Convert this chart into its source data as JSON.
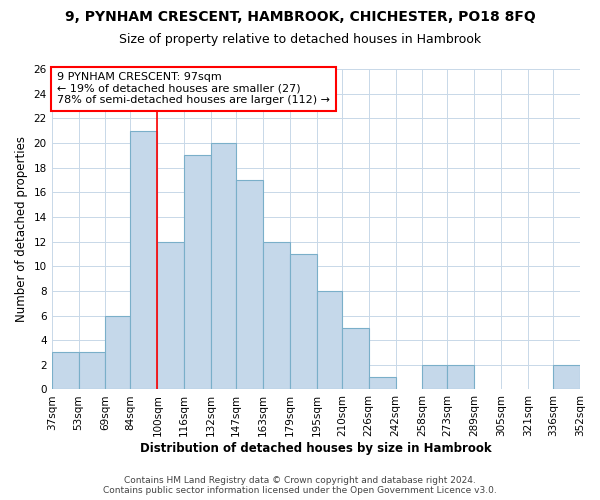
{
  "title": "9, PYNHAM CRESCENT, HAMBROOK, CHICHESTER, PO18 8FQ",
  "subtitle": "Size of property relative to detached houses in Hambrook",
  "xlabel": "Distribution of detached houses by size in Hambrook",
  "ylabel": "Number of detached properties",
  "bin_edges": [
    37,
    53,
    69,
    84,
    100,
    116,
    132,
    147,
    163,
    179,
    195,
    210,
    226,
    242,
    258,
    273,
    289,
    305,
    321,
    336,
    352
  ],
  "bin_labels": [
    "37sqm",
    "53sqm",
    "69sqm",
    "84sqm",
    "100sqm",
    "116sqm",
    "132sqm",
    "147sqm",
    "163sqm",
    "179sqm",
    "195sqm",
    "210sqm",
    "226sqm",
    "242sqm",
    "258sqm",
    "273sqm",
    "289sqm",
    "305sqm",
    "321sqm",
    "336sqm",
    "352sqm"
  ],
  "bar_heights": [
    3,
    3,
    6,
    21,
    12,
    19,
    20,
    17,
    12,
    11,
    8,
    5,
    1,
    0,
    2,
    2,
    0,
    0,
    0,
    2
  ],
  "bar_color": "#c5d8ea",
  "bar_edge_color": "#7aafc9",
  "red_line_x": 100,
  "ylim": [
    0,
    26
  ],
  "yticks": [
    0,
    2,
    4,
    6,
    8,
    10,
    12,
    14,
    16,
    18,
    20,
    22,
    24,
    26
  ],
  "annotation_box_text": "9 PYNHAM CRESCENT: 97sqm\n← 19% of detached houses are smaller (27)\n78% of semi-detached houses are larger (112) →",
  "footer_text": "Contains HM Land Registry data © Crown copyright and database right 2024.\nContains public sector information licensed under the Open Government Licence v3.0.",
  "background_color": "#ffffff",
  "plot_background_color": "#ffffff",
  "grid_color": "#c8d8e8",
  "title_fontsize": 10,
  "subtitle_fontsize": 9,
  "axis_label_fontsize": 8.5,
  "tick_fontsize": 7.5,
  "footer_fontsize": 6.5,
  "annotation_fontsize": 8
}
